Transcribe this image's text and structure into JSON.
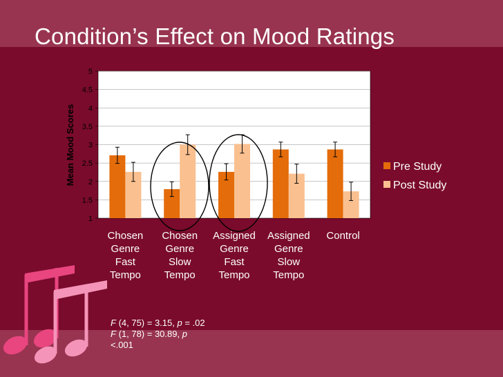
{
  "slide": {
    "title": "Condition’s Effect on Mood Ratings",
    "stats": {
      "line1_var": "F",
      "line1_rest": " (4, 75) = 3.15, ",
      "line1_p": "p",
      "line1_end": " = .02",
      "line2_var": "F",
      "line2_rest": " (1, 78) = 30.89, ",
      "line2_p": "p",
      "line2_end": "<.001"
    }
  },
  "colors": {
    "background": "#7a0b2c",
    "band": "#983450",
    "pre": "#e46c0a",
    "post": "#fac090",
    "notes": "#e9457f"
  },
  "chart_data": {
    "type": "bar",
    "title": "",
    "xlabel": "",
    "ylabel": "Mean Mood Scores",
    "ylim": [
      1,
      5
    ],
    "yticks": [
      "1",
      "1.5",
      "2",
      "2.5",
      "3",
      "3.5",
      "4",
      "4.5",
      "5"
    ],
    "categories": [
      [
        "Chosen",
        "Genre",
        "Fast",
        "Tempo"
      ],
      [
        "Chosen",
        "Genre",
        "Slow",
        "Tempo"
      ],
      [
        "Assigned",
        "Genre",
        "Fast",
        "Tempo"
      ],
      [
        "Assigned",
        "Genre",
        "Slow",
        "Tempo"
      ],
      [
        "Control"
      ]
    ],
    "series": [
      {
        "name": "Pre Study",
        "values": [
          2.71,
          1.79,
          2.26,
          2.87,
          2.87
        ],
        "errors": [
          0.22,
          0.2,
          0.22,
          0.2,
          0.2
        ]
      },
      {
        "name": "Post Study",
        "values": [
          2.26,
          3.0,
          3.02,
          2.21,
          1.73
        ],
        "errors": [
          0.26,
          0.27,
          0.25,
          0.26,
          0.25
        ]
      }
    ],
    "highlighted_categories": [
      1,
      2
    ],
    "legend_position": "right"
  }
}
